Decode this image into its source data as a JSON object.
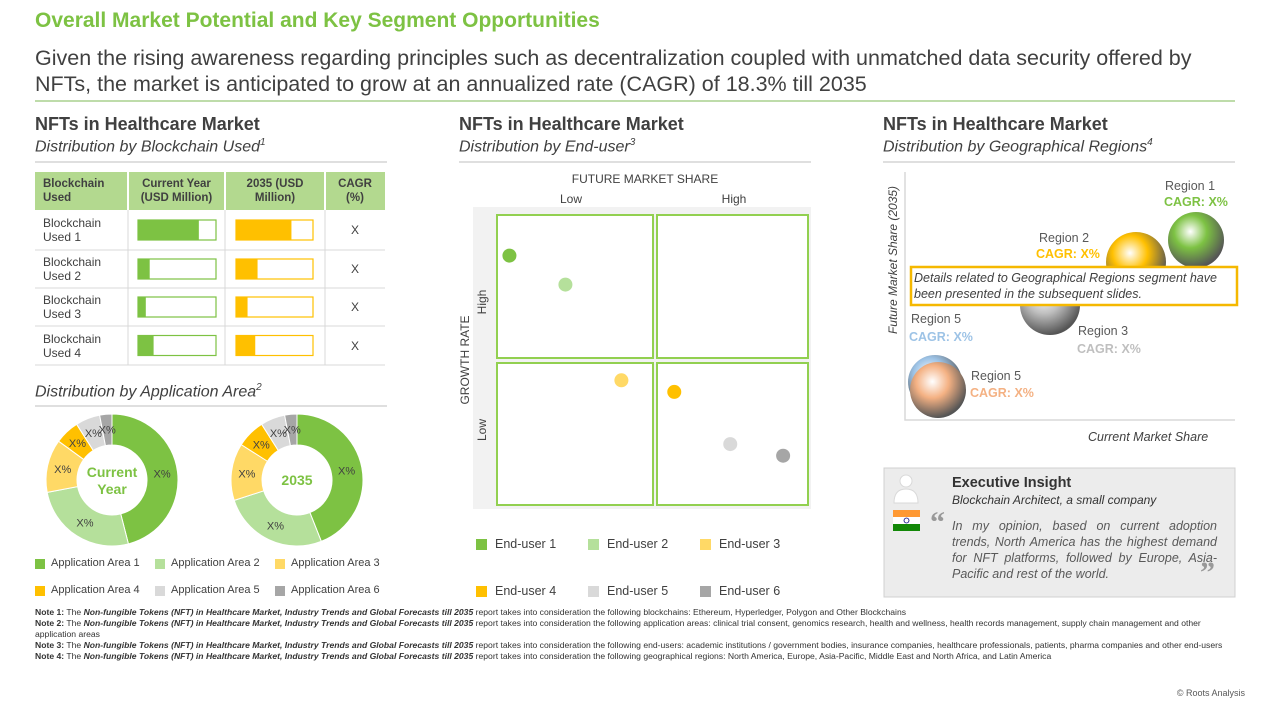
{
  "header": {
    "title": "Overall Market Potential and Key Segment Opportunities",
    "subtitle": "Given the rising awareness regarding principles such as decentralization coupled with unmatched data security offered by NFTs, the market is anticipated to grow at an annualized rate (CAGR) of 18.3% till 2035"
  },
  "blockchain": {
    "title": "NFTs in Healthcare Market",
    "subtitle": "Distribution by Blockchain Used",
    "note_ref": "1",
    "columns": [
      "Blockchain Used",
      "Current Year (USD Million)",
      "2035 (USD Million)",
      "CAGR (%)"
    ],
    "rows": [
      {
        "label": "Blockchain Used 1",
        "current": 78,
        "future": 72,
        "cagr": "X"
      },
      {
        "label": "Blockchain Used 2",
        "current": 15,
        "future": 28,
        "cagr": "X"
      },
      {
        "label": "Blockchain Used 3",
        "current": 10,
        "future": 15,
        "cagr": "X"
      },
      {
        "label": "Blockchain Used 4",
        "current": 20,
        "future": 25,
        "cagr": "X"
      }
    ]
  },
  "application": {
    "subtitle": "Distribution by Application Area",
    "note_ref": "2",
    "legend": [
      "Application Area 1",
      "Application Area 2",
      "Application Area 3",
      "Application Area 4",
      "Application Area 5",
      "Application Area 6"
    ],
    "colors": [
      "#7dc243",
      "#b5e09b",
      "#ffd966",
      "#ffc000",
      "#d9d9d9",
      "#a6a6a6"
    ],
    "donuts": [
      {
        "center": "Current Year",
        "values": [
          46,
          26,
          13,
          6,
          6,
          3
        ],
        "value_labels": [
          "X%",
          "X%",
          "X%",
          "X%",
          "X%",
          "X%"
        ]
      },
      {
        "center": "2035",
        "values": [
          44,
          26,
          14,
          7,
          6,
          3
        ],
        "value_labels": [
          "X%",
          "X%",
          "X%",
          "X%",
          "X%",
          "X%"
        ]
      }
    ]
  },
  "end_user": {
    "title": "NFTs in Healthcare Market",
    "subtitle": "Distribution by End-user",
    "note_ref": "3",
    "x_title": "FUTURE MARKET SHARE",
    "x_labels": [
      "Low",
      "High"
    ],
    "y_title": "GROWTH RATE",
    "y_labels": [
      "High",
      "Low"
    ],
    "series": [
      {
        "name": "End-user 1",
        "color": "#7dc243",
        "x": 4,
        "y": 86
      },
      {
        "name": "End-user 2",
        "color": "#b5e09b",
        "x": 22,
        "y": 76
      },
      {
        "name": "End-user 3",
        "color": "#ffd966",
        "x": 40,
        "y": 43
      },
      {
        "name": "End-user 4",
        "color": "#ffc000",
        "x": 57,
        "y": 39
      },
      {
        "name": "End-user 5",
        "color": "#d9d9d9",
        "x": 75,
        "y": 21
      },
      {
        "name": "End-user 6",
        "color": "#a6a6a6",
        "x": 92,
        "y": 17
      }
    ]
  },
  "regions": {
    "title": "NFTs in Healthcare Market",
    "subtitle": "Distribution by Geographical Regions",
    "note_ref": "4",
    "y_title": "Future Market Share (2035)",
    "x_title": "Current Market Share",
    "callout": "Details related to Geographical Regions segment have been presented in the subsequent slides.",
    "bubbles": [
      {
        "name": "Region 1",
        "label": "CAGR: X%",
        "color": "#7dc243"
      },
      {
        "name": "Region 2",
        "label": "CAGR: X%",
        "color": "#ffc000"
      },
      {
        "name": "Region 3",
        "label": "CAGR: X%",
        "color": "#bfbfbf"
      },
      {
        "name": "Region 5",
        "label": "CAGR: X%",
        "color": "#9dc3e6"
      },
      {
        "name": "Region 5",
        "label": "CAGR: X%",
        "color": "#f4b183"
      }
    ]
  },
  "insight": {
    "title": "Executive Insight",
    "role": "Blockchain Architect, a small company",
    "open_quote": "“",
    "quote": "In my opinion, based on current adoption trends, North America has the highest demand for NFT platforms, followed by Europe, Asia-Pacific and rest of the world.",
    "close_quote": "”"
  },
  "notes": [
    {
      "label": "Note 1:",
      "prefix": "The",
      "report": "Non-fungible Tokens (NFT) in Healthcare Market, Industry Trends and Global Forecasts till 2035",
      "text": "report takes into consideration the following blockchains: Ethereum, Hyperledger, Polygon and Other Blockchains"
    },
    {
      "label": "Note 2:",
      "prefix": "The",
      "report": "Non-fungible Tokens (NFT) in Healthcare Market, Industry Trends and Global Forecasts till 2035",
      "text": "report takes into consideration the following application areas: clinical trial consent, genomics research, health and wellness, health records management, supply chain management and other application areas"
    },
    {
      "label": "Note 3:",
      "prefix": "The",
      "report": "Non-fungible Tokens (NFT) in Healthcare Market, Industry Trends and Global Forecasts till 2035",
      "text": "report takes into consideration the following end-users: academic institutions / government bodies, insurance companies, healthcare professionals, patients, pharma companies and other end-users"
    },
    {
      "label": "Note 4:",
      "prefix": "The",
      "report": "Non-fungible Tokens (NFT) in Healthcare Market, Industry Trends and Global Forecasts till 2035",
      "text": "report takes into consideration the following geographical regions: North America, Europe, Asia-Pacific, Middle East and North Africa, and Latin America"
    }
  ],
  "footer": "© Roots Analysis"
}
